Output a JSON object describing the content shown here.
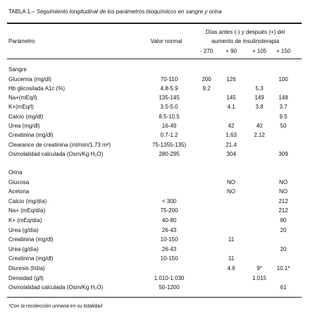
{
  "header": {
    "label": "TABLA 1.–",
    "caption": "Seguimiento longitudinal de los parámetros bioquímicos en sangre y orina"
  },
  "table": {
    "param_header": "Parámetro",
    "normal_header": "Valor normal",
    "group_header": [
      "Días antes (-) y después (+) del",
      "aumento de insulinoterapia"
    ],
    "columns": [
      "- 270",
      "+ 90",
      "+ 105",
      "+ 150"
    ],
    "sections": [
      {
        "title": "Sangre",
        "rows": [
          {
            "param": "Glucemia (mg/dl)",
            "normal": "70-110",
            "values": [
              "200",
              "126",
              null,
              "100"
            ]
          },
          {
            "param": "Hb glicosilada A1c (%)",
            "normal": "4.8-5.9",
            "values": [
              "9.2",
              null,
              "5.3",
              null
            ]
          },
          {
            "param": "Na+(mEq/l)",
            "normal": "135-145",
            "values": [
              null,
              "145",
              "149",
              "148"
            ]
          },
          {
            "param": "K+(mEq/l)",
            "normal": "3.5-5.0",
            "values": [
              null,
              "4.1",
              "3.8",
              "3.7"
            ]
          },
          {
            "param": "Calcio (mg/dl)",
            "normal": "8.5-10.5",
            "values": [
              null,
              null,
              null,
              "9.5"
            ]
          },
          {
            "param": "Urea (mg/dl)",
            "normal": "16-49",
            "values": [
              null,
              "42",
              "40",
              "50"
            ]
          },
          {
            "param": "Creatinina (mg/dl)",
            "normal": "0.7-1.2",
            "values": [
              null,
              "1.63",
              "2.12",
              null
            ]
          },
          {
            "param": "Clearance de creatinina (ml/min/1.73 m²)",
            "normal": "75-1355-135)",
            "values": [
              null,
              "21.4",
              null,
              null
            ]
          },
          {
            "param": "Osmolalidad  calculada (Osm/Kg H₂O)",
            "normal": "280-295",
            "values": [
              null,
              "304",
              null,
              "309"
            ]
          }
        ]
      },
      {
        "title": "Orina",
        "rows": [
          {
            "param": "Glucosa",
            "normal": null,
            "values": [
              null,
              "NO",
              null,
              "NO"
            ]
          },
          {
            "param": "Acetona",
            "normal": null,
            "values": [
              null,
              "NO",
              null,
              "NO"
            ]
          },
          {
            "param": "Calcio  (mg/día)",
            "normal": "< 300",
            "values": [
              null,
              null,
              null,
              "212"
            ]
          },
          {
            "param": "Na+  (mEq/día)",
            "normal": "75-200",
            "values": [
              null,
              null,
              null,
              "212"
            ]
          },
          {
            "param": "K+  (mEq/día)",
            "normal": "40-80",
            "values": [
              null,
              null,
              null,
              "80"
            ]
          },
          {
            "param": "Urea  (g/día)",
            "normal": "26-43",
            "values": [
              null,
              null,
              null,
              "20"
            ]
          },
          {
            "param": "Creatinina (mg/dl)",
            "normal": "10-150",
            "values": [
              null,
              "11",
              null,
              null
            ]
          },
          {
            "param": "Urea  (g/día)",
            "normal": "26-43",
            "values": [
              null,
              null,
              null,
              "20"
            ]
          },
          {
            "param": "Creatinina (mg/dl)",
            "normal": "10-150",
            "values": [
              null,
              "11",
              null,
              null
            ]
          },
          {
            "param": "Diuresis (l/día)",
            "normal": null,
            "values": [
              null,
              "4.6",
              "9*",
              "10.1*"
            ]
          },
          {
            "param": "Densidad (g/l)",
            "normal": "1.010-1.030",
            "values": [
              null,
              null,
              "1.015",
              null
            ]
          },
          {
            "param": "Osmolalidad calculada (Osm/Kg H₂O)",
            "normal": "50-1200",
            "values": [
              null,
              null,
              null,
              "61"
            ]
          }
        ]
      }
    ]
  },
  "footnote": "*Con la recolección urinaria en su totalidad"
}
